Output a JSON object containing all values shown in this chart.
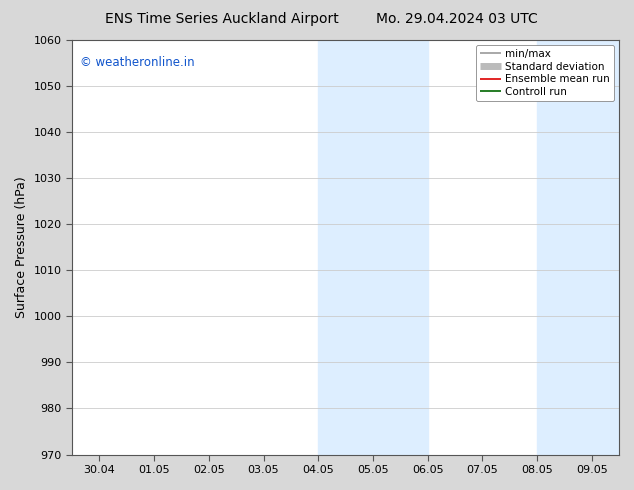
{
  "title_left": "ENS Time Series Auckland Airport",
  "title_right": "Mo. 29.04.2024 03 UTC",
  "ylabel": "Surface Pressure (hPa)",
  "ylim": [
    970,
    1060
  ],
  "yticks": [
    970,
    980,
    990,
    1000,
    1010,
    1020,
    1030,
    1040,
    1050,
    1060
  ],
  "xtick_labels": [
    "30.04",
    "01.05",
    "02.05",
    "03.05",
    "04.05",
    "05.05",
    "06.05",
    "07.05",
    "08.05",
    "09.05"
  ],
  "watermark": "© weatheronline.in",
  "watermark_color": "#1155cc",
  "shade_bands": [
    {
      "xstart": 4.0,
      "xend": 5.0
    },
    {
      "xstart": 5.0,
      "xend": 6.0
    },
    {
      "xstart": 8.0,
      "xend": 9.0
    },
    {
      "xstart": 9.0,
      "xend": 9.5
    }
  ],
  "shade_color": "#ddeeff",
  "legend_items": [
    {
      "label": "min/max",
      "color": "#999999",
      "lw": 1.2
    },
    {
      "label": "Standard deviation",
      "color": "#bbbbbb",
      "lw": 5
    },
    {
      "label": "Ensemble mean run",
      "color": "#dd0000",
      "lw": 1.2
    },
    {
      "label": "Controll run",
      "color": "#006600",
      "lw": 1.2
    }
  ],
  "fig_bg_color": "#d8d8d8",
  "plot_bg_color": "#ffffff",
  "grid_color": "#cccccc",
  "spine_color": "#555555",
  "title_fontsize": 10,
  "tick_fontsize": 8,
  "ylabel_fontsize": 9,
  "watermark_fontsize": 8.5
}
